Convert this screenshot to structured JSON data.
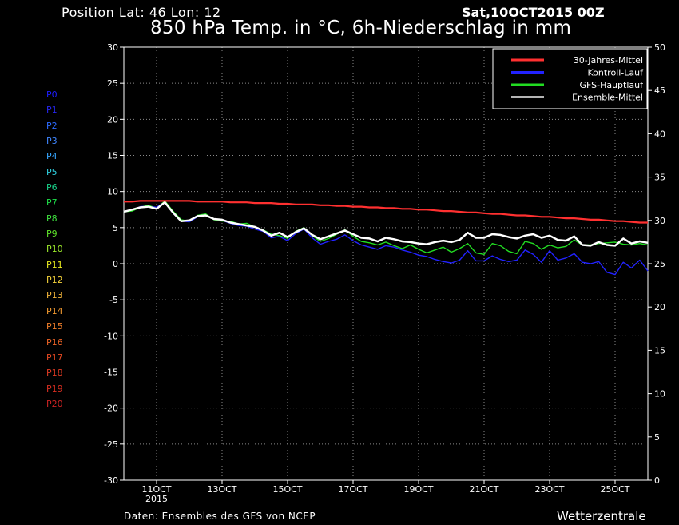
{
  "header": {
    "position": "Position  Lat: 46 Lon: 12",
    "datetime": "Sat,10OCT2015 00Z",
    "title": "850 hPa Temp. in °C, 6h-Niederschlag in mm"
  },
  "footer": {
    "source": "Daten: Ensembles des GFS von NCEP",
    "brand": "Wetterzentrale"
  },
  "members": [
    {
      "label": "P0",
      "color": "#1d1dff"
    },
    {
      "label": "P1",
      "color": "#2626f0"
    },
    {
      "label": "P2",
      "color": "#2c6bff"
    },
    {
      "label": "P3",
      "color": "#3f86ff"
    },
    {
      "label": "P4",
      "color": "#36a6ff"
    },
    {
      "label": "P5",
      "color": "#2fd0e0"
    },
    {
      "label": "P6",
      "color": "#19d28a"
    },
    {
      "label": "P7",
      "color": "#1ee04a"
    },
    {
      "label": "P8",
      "color": "#3fe23f"
    },
    {
      "label": "P9",
      "color": "#5fe32a"
    },
    {
      "label": "P10",
      "color": "#9be82a"
    },
    {
      "label": "P11",
      "color": "#e6e81e"
    },
    {
      "label": "P12",
      "color": "#f5d23a"
    },
    {
      "label": "P13",
      "color": "#f2b43a"
    },
    {
      "label": "P14",
      "color": "#f29a30"
    },
    {
      "label": "P15",
      "color": "#f07e2a"
    },
    {
      "label": "P16",
      "color": "#ee6426"
    },
    {
      "label": "P17",
      "color": "#e84a22"
    },
    {
      "label": "P18",
      "color": "#e03a22"
    },
    {
      "label": "P19",
      "color": "#d82e20"
    },
    {
      "label": "P20",
      "color": "#cc2222"
    }
  ],
  "chart_data": {
    "type": "line",
    "title": "850 hPa Temp. in °C, 6h-Niederschlag in mm",
    "x_axis": {
      "ticks": [
        "11OCT",
        "13OCT",
        "15OCT",
        "17OCT",
        "19OCT",
        "21OCT",
        "23OCT",
        "25OCT"
      ],
      "sub_label": "2015",
      "range_days": [
        0,
        16
      ],
      "step_hours": 6
    },
    "y_left": {
      "label": "°C",
      "range": [
        -30,
        30
      ],
      "ticks": [
        30,
        25,
        20,
        15,
        10,
        5,
        0,
        -5,
        -10,
        -15,
        -20,
        -25,
        -30
      ]
    },
    "y_right": {
      "label": "mm",
      "range": [
        0,
        50
      ],
      "ticks": [
        50,
        45,
        40,
        35,
        30,
        25,
        20,
        15,
        10,
        5,
        0
      ]
    },
    "grid": true,
    "legend_position": "top-right",
    "legend": [
      {
        "name": "30-Jahres-Mittel",
        "color": "#ff3030"
      },
      {
        "name": "Kontroll-Lauf",
        "color": "#2222ff"
      },
      {
        "name": "GFS-Hauptlauf",
        "color": "#22dd22"
      },
      {
        "name": "Ensemble-Mittel",
        "color": "#b4b4b4"
      }
    ],
    "series": [
      {
        "name": "30-Jahres-Mittel",
        "axis": "left",
        "color": "#ff3030",
        "values": [
          8.6,
          8.6,
          8.7,
          8.7,
          8.7,
          8.7,
          8.7,
          8.7,
          8.7,
          8.6,
          8.6,
          8.6,
          8.6,
          8.5,
          8.5,
          8.5,
          8.4,
          8.4,
          8.4,
          8.3,
          8.3,
          8.2,
          8.2,
          8.2,
          8.1,
          8.1,
          8.0,
          8.0,
          7.9,
          7.9,
          7.8,
          7.8,
          7.7,
          7.7,
          7.6,
          7.6,
          7.5,
          7.5,
          7.4,
          7.3,
          7.3,
          7.2,
          7.1,
          7.1,
          7.0,
          6.9,
          6.9,
          6.8,
          6.7,
          6.7,
          6.6,
          6.5,
          6.5,
          6.4,
          6.3,
          6.3,
          6.2,
          6.1,
          6.1,
          6.0,
          5.9,
          5.9,
          5.8,
          5.7,
          5.7
        ]
      },
      {
        "name": "Kontroll-Lauf",
        "axis": "left",
        "color": "#2222ff",
        "values": [
          7.2,
          7.4,
          7.9,
          8.0,
          7.8,
          8.6,
          7.0,
          5.9,
          5.8,
          6.5,
          6.7,
          6.2,
          6.0,
          5.6,
          5.3,
          5.2,
          4.8,
          4.5,
          3.6,
          3.8,
          3.2,
          4.2,
          4.8,
          3.6,
          2.7,
          3.1,
          3.4,
          4.0,
          3.2,
          2.6,
          2.3,
          2.0,
          2.5,
          2.3,
          1.9,
          1.6,
          1.2,
          1.0,
          0.6,
          0.3,
          0.1,
          0.5,
          1.8,
          0.4,
          0.4,
          1.1,
          0.6,
          0.3,
          0.5,
          1.9,
          1.3,
          0.2,
          1.8,
          0.5,
          0.8,
          1.4,
          0.2,
          0.0,
          0.3,
          -1.2,
          -1.5,
          0.2,
          -0.6,
          0.5,
          -1.0
        ]
      },
      {
        "name": "GFS-Hauptlauf",
        "axis": "left",
        "color": "#22dd22",
        "values": [
          7.2,
          7.3,
          7.8,
          8.1,
          7.6,
          8.7,
          7.3,
          6.1,
          5.9,
          6.7,
          6.9,
          6.1,
          5.9,
          5.9,
          5.5,
          5.6,
          5.1,
          4.7,
          4.1,
          3.9,
          3.5,
          4.5,
          5.0,
          3.9,
          3.1,
          3.5,
          4.1,
          4.7,
          3.8,
          3.1,
          2.9,
          2.6,
          3.0,
          2.5,
          2.1,
          2.6,
          2.0,
          1.5,
          1.9,
          2.3,
          1.6,
          2.1,
          2.8,
          1.5,
          1.3,
          2.8,
          2.5,
          1.7,
          1.4,
          3.1,
          2.8,
          2.0,
          2.6,
          2.2,
          2.4,
          3.3,
          2.6,
          2.6,
          2.8,
          2.9,
          3.0,
          2.7,
          2.6,
          2.8,
          2.6
        ]
      },
      {
        "name": "Ensemble-Mittel",
        "axis": "left",
        "color": "#ffffff",
        "values": [
          7.2,
          7.5,
          7.8,
          7.9,
          7.6,
          8.5,
          7.1,
          5.9,
          6.0,
          6.6,
          6.7,
          6.2,
          6.1,
          5.7,
          5.5,
          5.3,
          5.1,
          4.6,
          3.9,
          4.3,
          3.7,
          4.4,
          4.9,
          4.0,
          3.4,
          3.8,
          4.2,
          4.6,
          4.1,
          3.6,
          3.5,
          3.1,
          3.6,
          3.4,
          3.1,
          3.0,
          2.8,
          2.7,
          3.0,
          3.2,
          3.0,
          3.3,
          4.3,
          3.6,
          3.6,
          4.1,
          4.0,
          3.7,
          3.5,
          3.9,
          4.1,
          3.6,
          3.9,
          3.3,
          3.2,
          3.8,
          2.6,
          2.5,
          3.0,
          2.6,
          2.5,
          3.5,
          2.8,
          3.1,
          2.9
        ]
      }
    ]
  }
}
